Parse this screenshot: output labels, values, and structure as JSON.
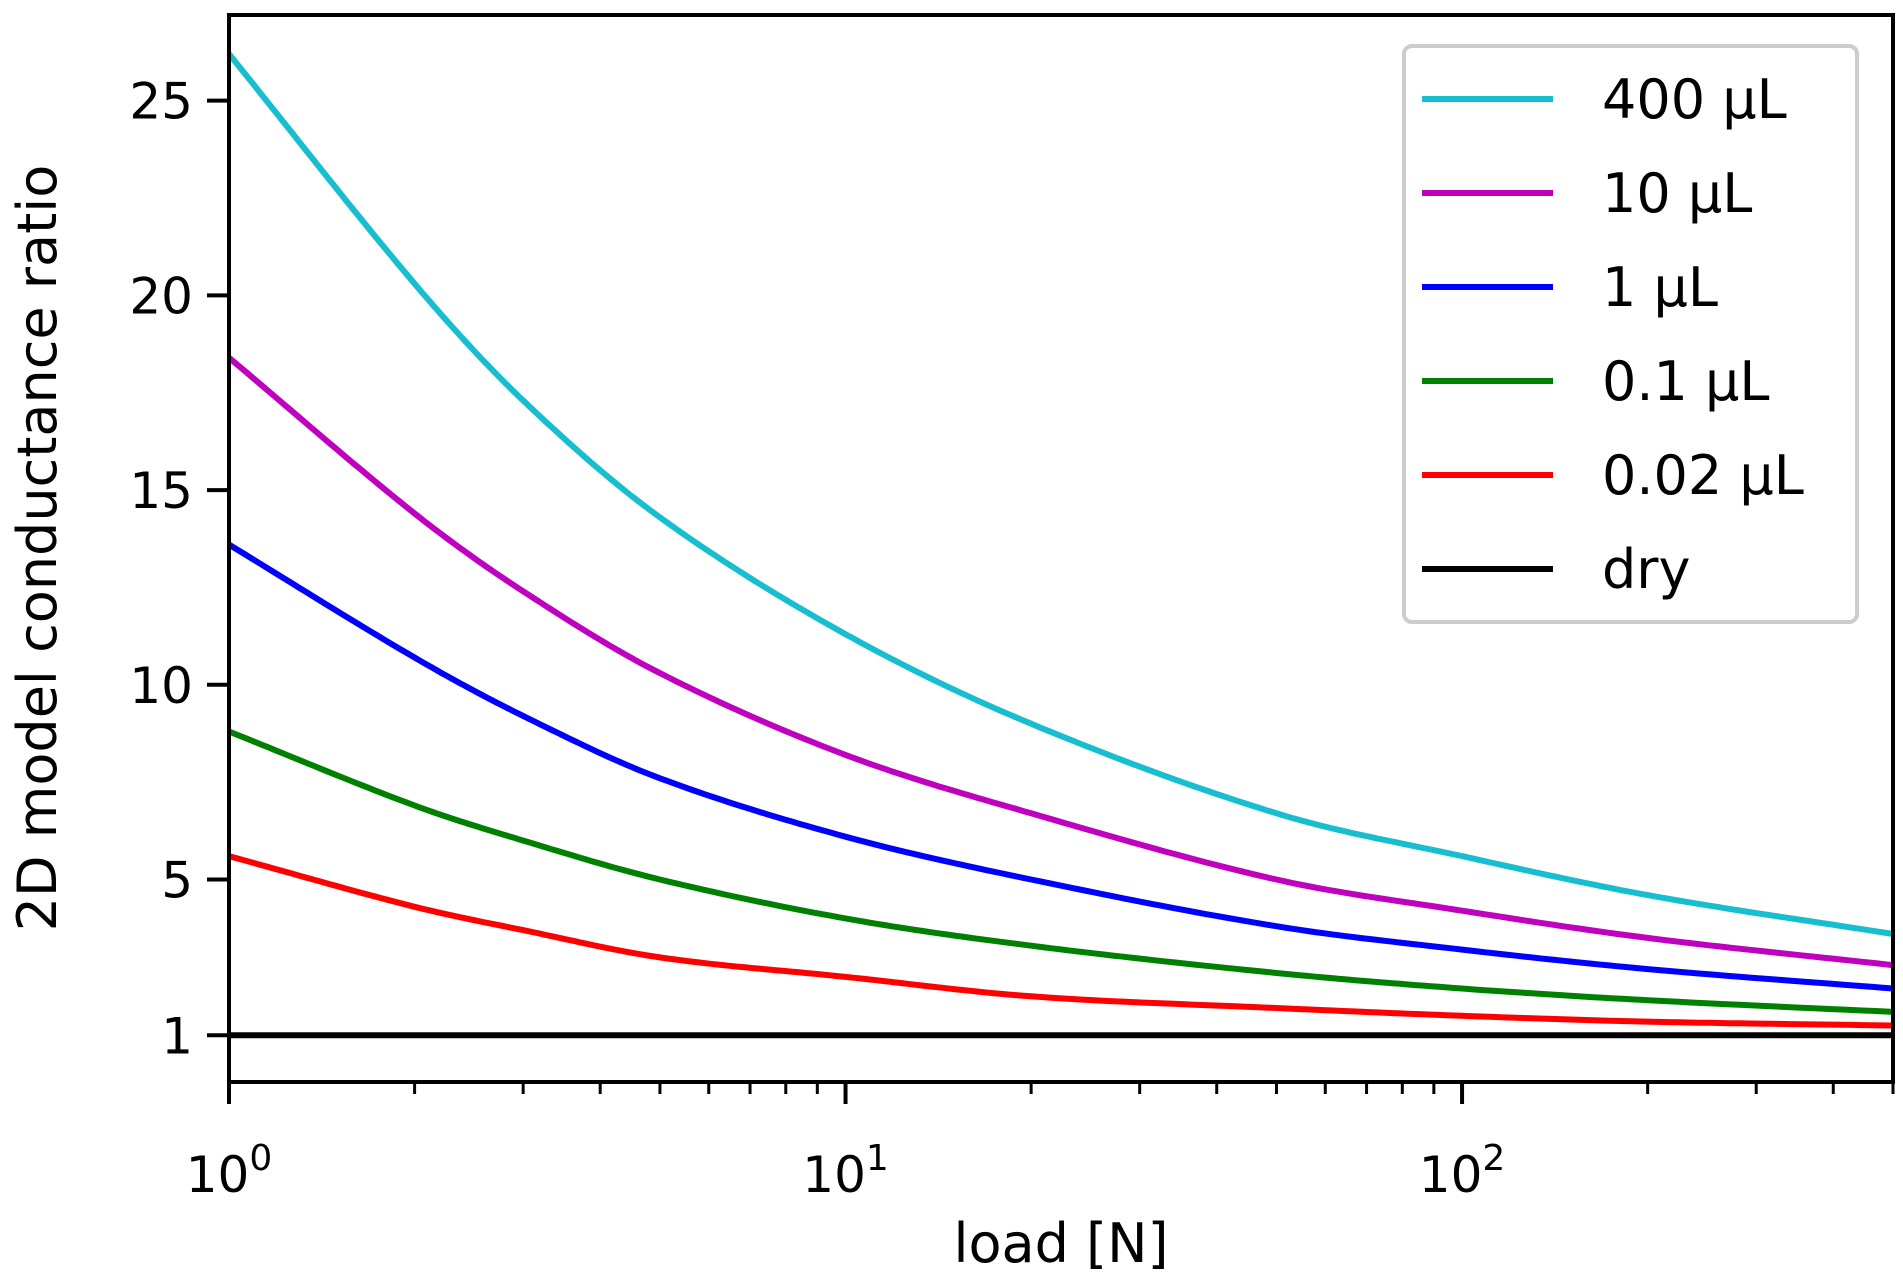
{
  "chart_data": {
    "type": "line",
    "title": "",
    "xlabel": "load [N]",
    "ylabel": "2D model conductance ratio",
    "xscale": "log",
    "xlim": [
      1,
      500
    ],
    "ylim": [
      -0.2,
      27.2
    ],
    "x_ticks": [
      {
        "value": 1,
        "base": "10",
        "exp": "0"
      },
      {
        "value": 10,
        "base": "10",
        "exp": "1"
      },
      {
        "value": 100,
        "base": "10",
        "exp": "2"
      }
    ],
    "y_ticks": [
      {
        "value": 1,
        "label": "1"
      },
      {
        "value": 5,
        "label": "5"
      },
      {
        "value": 10,
        "label": "10"
      },
      {
        "value": 15,
        "label": "15"
      },
      {
        "value": 20,
        "label": "20"
      },
      {
        "value": 25,
        "label": "25"
      }
    ],
    "legend_position": "top-right",
    "series": [
      {
        "name": "400 μL",
        "color": "#17becf",
        "x": [
          1,
          2,
          3,
          5,
          10,
          20,
          50,
          100,
          200,
          500
        ],
        "values": [
          26.2,
          20.3,
          17.3,
          14.3,
          11.3,
          9.0,
          6.7,
          5.6,
          4.6,
          3.6
        ]
      },
      {
        "name": "10 μL",
        "color": "#bf00bf",
        "x": [
          1,
          2,
          3,
          5,
          10,
          20,
          50,
          100,
          200,
          500
        ],
        "values": [
          18.4,
          14.4,
          12.4,
          10.3,
          8.2,
          6.7,
          5.0,
          4.2,
          3.5,
          2.8
        ]
      },
      {
        "name": "1 μL",
        "color": "#0000ff",
        "x": [
          1,
          2,
          3,
          5,
          10,
          20,
          50,
          100,
          200,
          500
        ],
        "values": [
          13.6,
          10.7,
          9.2,
          7.6,
          6.1,
          5.0,
          3.8,
          3.2,
          2.7,
          2.2
        ]
      },
      {
        "name": "0.1 μL",
        "color": "#008000",
        "x": [
          1,
          2,
          3,
          5,
          10,
          20,
          50,
          100,
          200,
          500
        ],
        "values": [
          8.8,
          6.9,
          6.0,
          5.0,
          4.0,
          3.3,
          2.6,
          2.2,
          1.9,
          1.6
        ]
      },
      {
        "name": "0.02 μL",
        "color": "#ff0000",
        "x": [
          1,
          2,
          3,
          5,
          10,
          20,
          50,
          100,
          200,
          500
        ],
        "values": [
          5.6,
          4.3,
          3.7,
          3.0,
          2.5,
          2.0,
          1.7,
          1.5,
          1.35,
          1.25
        ]
      },
      {
        "name": "dry",
        "color": "#000000",
        "x": [
          1,
          500
        ],
        "values": [
          1,
          1
        ]
      }
    ]
  }
}
